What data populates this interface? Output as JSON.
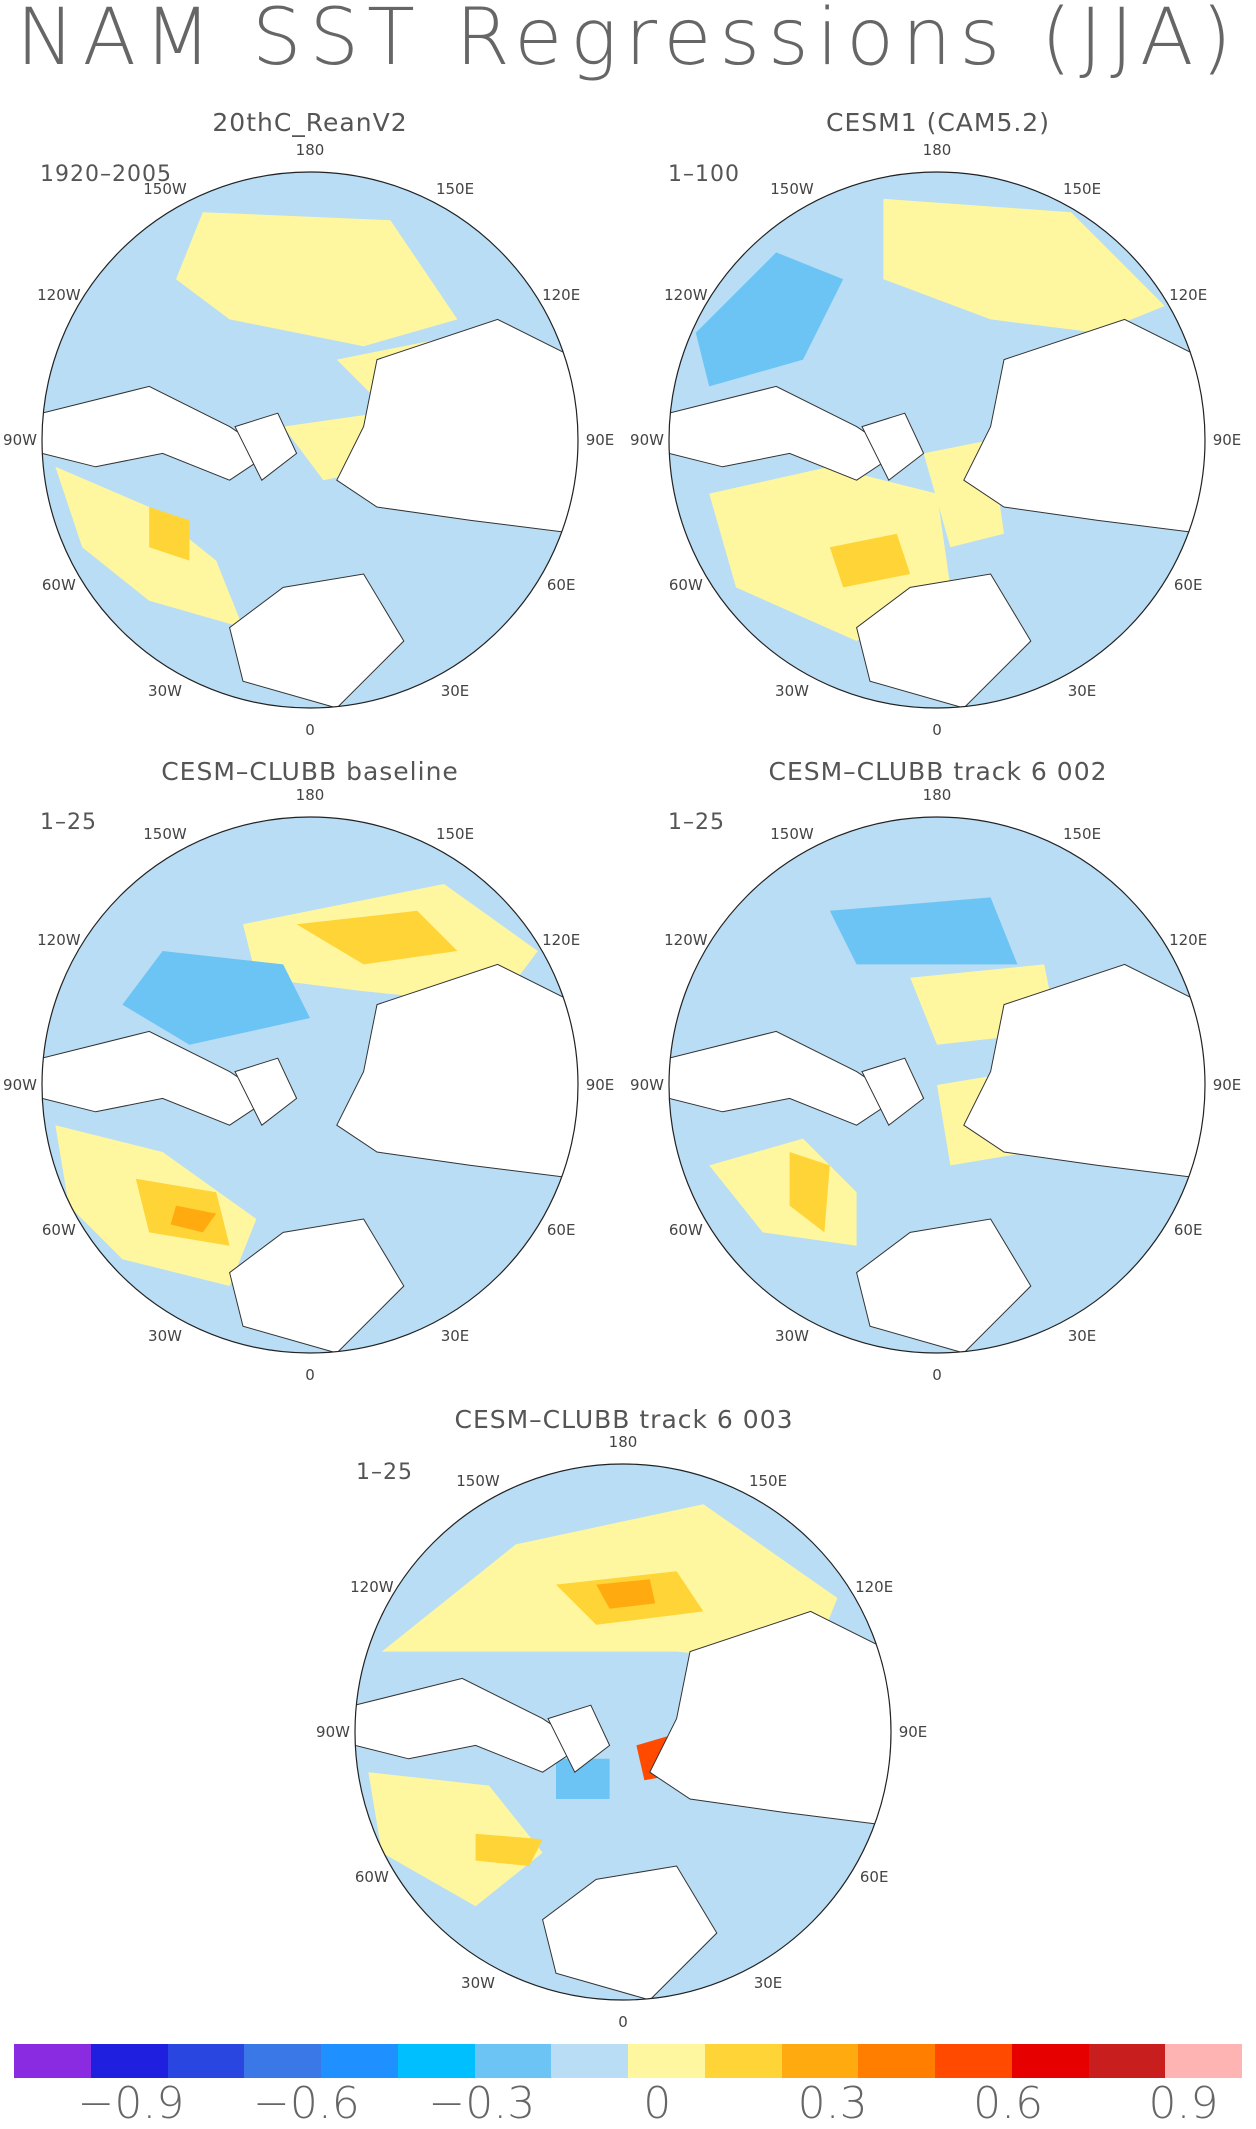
{
  "title": "NAM SST Regressions (JJA)",
  "lon_labels": [
    "180",
    "150E",
    "120E",
    "90E",
    "60E",
    "30E",
    "0",
    "30W",
    "60W",
    "90W",
    "120W",
    "150W"
  ],
  "panels": [
    {
      "id": "p1",
      "title": "20thC_ReanV2",
      "period": "1920–2005"
    },
    {
      "id": "p2",
      "title": "CESM1 (CAM5.2)",
      "period": "1–100"
    },
    {
      "id": "p3",
      "title": "CESM–CLUBB baseline",
      "period": "1–25"
    },
    {
      "id": "p4",
      "title": "CESM–CLUBB track 6 002",
      "period": "1–25"
    },
    {
      "id": "p5",
      "title": "CESM–CLUBB track 6 003",
      "period": "1–25"
    }
  ],
  "colorbar": {
    "colors": [
      "#8a2be2",
      "#1f1fe0",
      "#2a46e0",
      "#3a78e8",
      "#1e90ff",
      "#00bfff",
      "#6cc4f4",
      "#b8ddf4",
      "#fff7a0",
      "#ffd436",
      "#ffab10",
      "#ff7e00",
      "#ff4a00",
      "#e60000",
      "#c81e1e",
      "#ffb4b4"
    ],
    "labels": [
      "−0.9",
      "−0.6",
      "−0.3",
      "0",
      "0.3",
      "0.6",
      "0.9"
    ]
  },
  "chart_data": {
    "type": "heatmap",
    "variable": "SST regression on NAM (JJA)",
    "contour_levels": [
      -0.9,
      -0.8,
      -0.7,
      -0.6,
      -0.5,
      -0.4,
      -0.3,
      -0.2,
      -0.1,
      0,
      0.1,
      0.2,
      0.3,
      0.4,
      0.5,
      0.6,
      0.7,
      0.8,
      0.9
    ],
    "projection": "north polar stereographic",
    "colorbar_tick_labels": [
      -0.9,
      -0.6,
      -0.3,
      0,
      0.3,
      0.6,
      0.9
    ]
  }
}
